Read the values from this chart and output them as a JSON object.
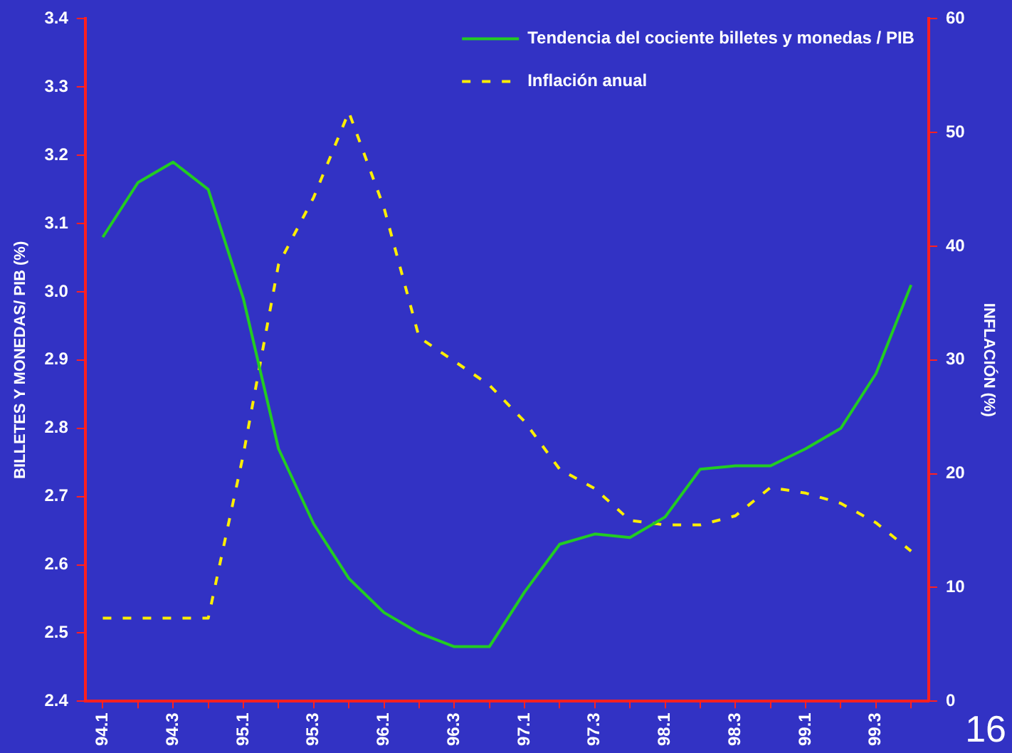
{
  "chart_data": {
    "type": "line",
    "xlabel": null,
    "ylabel": "BILLETES Y MONEDAS/ PIB (%)",
    "y2label": "INFLACIÓN (%)",
    "categories": [
      "94.1",
      null,
      "94.3",
      null,
      "95.1",
      null,
      "95.3",
      null,
      "96.1",
      null,
      "96.3",
      null,
      "97.1",
      null,
      "97.3",
      null,
      "98.1",
      null,
      "98.3",
      null,
      "99.1",
      null,
      "99.3",
      null
    ],
    "series": [
      {
        "name": "Tendencia del cociente billetes y monedas / PIB",
        "color": "#22cc22",
        "line_style": "solid",
        "values": [
          3.08,
          3.16,
          3.19,
          3.15,
          2.99,
          2.77,
          2.66,
          2.58,
          2.53,
          2.5,
          2.48,
          2.48,
          2.56,
          2.63,
          2.645,
          2.64,
          2.67,
          2.74,
          2.745,
          2.745,
          2.77,
          2.8,
          2.88,
          3.01
        ]
      },
      {
        "name": "Inflación anual",
        "color": "#ffee00",
        "line_style": "dashed",
        "axis": "y2",
        "values": [
          7.3,
          7.3,
          7.3,
          7.3,
          21.7,
          38.4,
          44.3,
          51.8,
          43.4,
          32,
          29.9,
          27.8,
          24.6,
          20.4,
          18.7,
          15.9,
          15.5,
          15.5,
          16.3,
          18.8,
          18.3,
          17.4,
          15.7,
          13.2
        ]
      }
    ],
    "ylim": [
      2.4,
      3.4
    ],
    "yticks": [
      2.4,
      2.5,
      2.6,
      2.7,
      2.8,
      2.9,
      {
        "value": 3,
        "label": "3.0"
      },
      3.1,
      3.2,
      3.3,
      3.4
    ],
    "y2lim": [
      0,
      60
    ],
    "y2ticks": [
      0,
      10,
      20,
      30,
      40,
      50,
      60
    ],
    "grid": false,
    "legend": "top right",
    "marker": "none",
    "annotations": [
      "16"
    ]
  }
}
